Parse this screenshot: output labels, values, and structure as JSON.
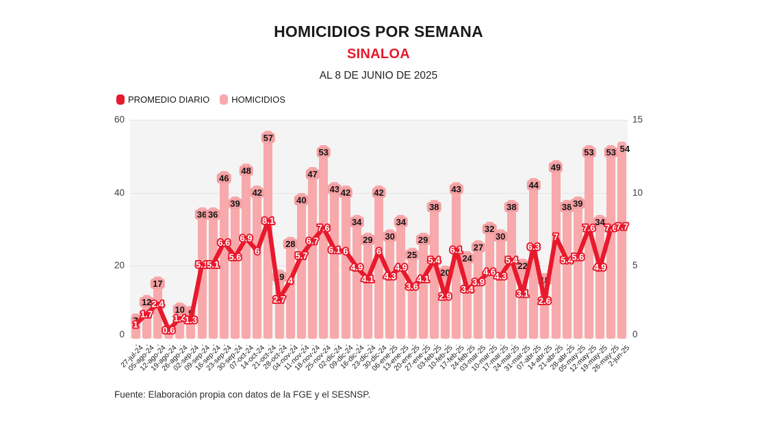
{
  "header": {
    "title": "HOMICIDIOS POR SEMANA",
    "subtitle": "SINALOA",
    "dateline": "AL 8 DE JUNIO DE 2025"
  },
  "legend": {
    "items": [
      {
        "label": "PROMEDIO DIARIO",
        "swatch_color": "#E8192C"
      },
      {
        "label": "HOMICIDIOS",
        "swatch_color": "#F8A9AB"
      }
    ]
  },
  "footer": {
    "source": "Fuente: Elaboración propia con datos de la FGE y el SESNSP."
  },
  "colors": {
    "accent_red": "#E8192C",
    "bar_pink": "#F8A9AB",
    "label_badge_pink": "#F4A0A3",
    "plot_background": "#F4F4F4",
    "gridline": "#E3E3E3"
  },
  "chart_data": {
    "type": "bar",
    "combo": "bar + line, dual axis",
    "title": "HOMICIDIOS POR SEMANA",
    "subtitle": "SINALOA",
    "note": "AL 8 DE JUNIO DE 2025",
    "legend_position": "top-left",
    "grid": "horizontal",
    "categories": [
      "27-jul-24",
      "05-ago-24",
      "12-ago-24",
      "19-ago-24",
      "26-ago-24",
      "02-sep-24",
      "09-sep-24",
      "16-sep-24",
      "23-sep-24",
      "30-sep-24",
      "07-oct-24",
      "14-oct-24",
      "21-oct-24",
      "28-oct-24",
      "04-nov-24",
      "11-nov-24",
      "18-nov-24",
      "25-nov-24",
      "02-dic-24",
      "09-dic-24",
      "16-dic-24",
      "23-dic-24",
      "30-dic-24",
      "06-ene-25",
      "13-ene-25",
      "20-ene-25",
      "27-ene-25",
      "03-feb-25",
      "10-feb-25",
      "17-feb-25",
      "24-feb-25",
      "03-mar-25",
      "10-mar-25",
      "17-mar-25",
      "24-mar-25",
      "31-mar-25",
      "07-abr-25",
      "14-abr-25",
      "21-abr-25",
      "28-abr-25",
      "05-may-25",
      "12-may-25",
      "19-may-25",
      "26-may-25",
      "2-jun-25"
    ],
    "series": [
      {
        "name": "HOMICIDIOS",
        "type": "bar",
        "axis": "left",
        "values": [
          7,
          12,
          17,
          4,
          10,
          9,
          36,
          36,
          46,
          39,
          48,
          42,
          57,
          19,
          28,
          40,
          47,
          53,
          43,
          42,
          34,
          29,
          42,
          30,
          34,
          25,
          29,
          38,
          20,
          43,
          24,
          27,
          32,
          30,
          38,
          22,
          44,
          18,
          49,
          38,
          39,
          53,
          34,
          53,
          54
        ]
      },
      {
        "name": "PROMEDIO DIARIO",
        "type": "line",
        "axis": "right",
        "values": [
          1,
          1.7,
          2.4,
          0.6,
          1.4,
          1.3,
          5.1,
          5.1,
          6.6,
          5.6,
          6.9,
          6,
          8.1,
          2.7,
          4,
          5.7,
          6.7,
          7.6,
          6.1,
          6,
          4.9,
          4.1,
          6,
          4.3,
          4.9,
          3.6,
          4.1,
          5.4,
          2.9,
          6.1,
          3.4,
          3.9,
          4.6,
          4.3,
          5.4,
          3.1,
          6.3,
          2.6,
          7,
          5.4,
          5.6,
          7.6,
          4.9,
          7.6,
          7.7
        ]
      }
    ],
    "left_axis": {
      "ticks": [
        0,
        20,
        40,
        60
      ],
      "range": [
        0,
        60
      ]
    },
    "right_axis": {
      "ticks": [
        0,
        5,
        10,
        15
      ],
      "range": [
        0,
        15
      ]
    },
    "gridline_values": [
      20,
      40,
      60
    ],
    "bar_label_hidden_indices": [
      3
    ],
    "bar_label_no_badge_indices": [
      44
    ]
  }
}
